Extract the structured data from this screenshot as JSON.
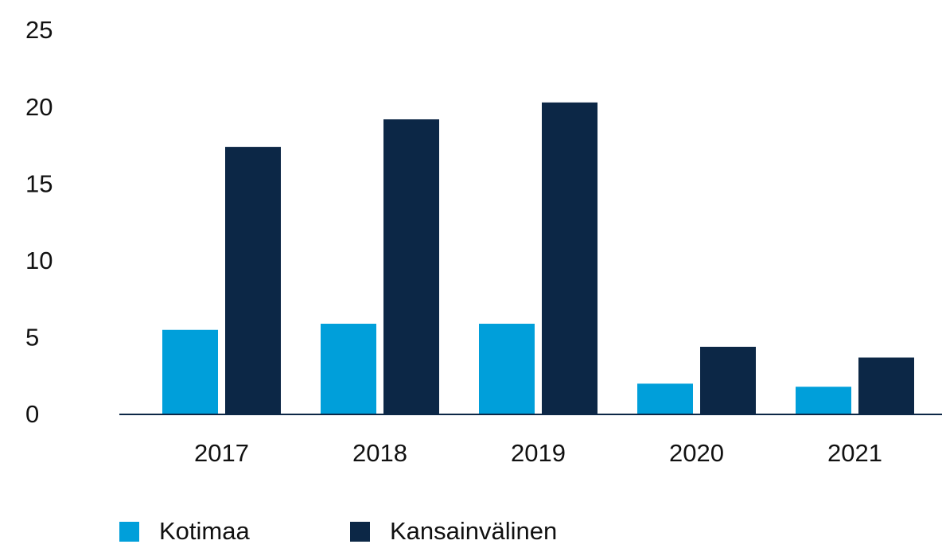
{
  "chart_data": {
    "type": "bar",
    "categories": [
      "2017",
      "2018",
      "2019",
      "2020",
      "2021"
    ],
    "series": [
      {
        "name": "Kotimaa",
        "color": "#009fda",
        "values": [
          5.5,
          5.9,
          5.9,
          2.0,
          1.8
        ]
      },
      {
        "name": "Kansainvälinen",
        "color": "#0c2746",
        "values": [
          17.4,
          19.2,
          20.3,
          4.4,
          3.7
        ]
      }
    ],
    "ylim": [
      0,
      25
    ],
    "yticks": [
      0,
      5,
      10,
      15,
      20,
      25
    ],
    "grid": false
  }
}
